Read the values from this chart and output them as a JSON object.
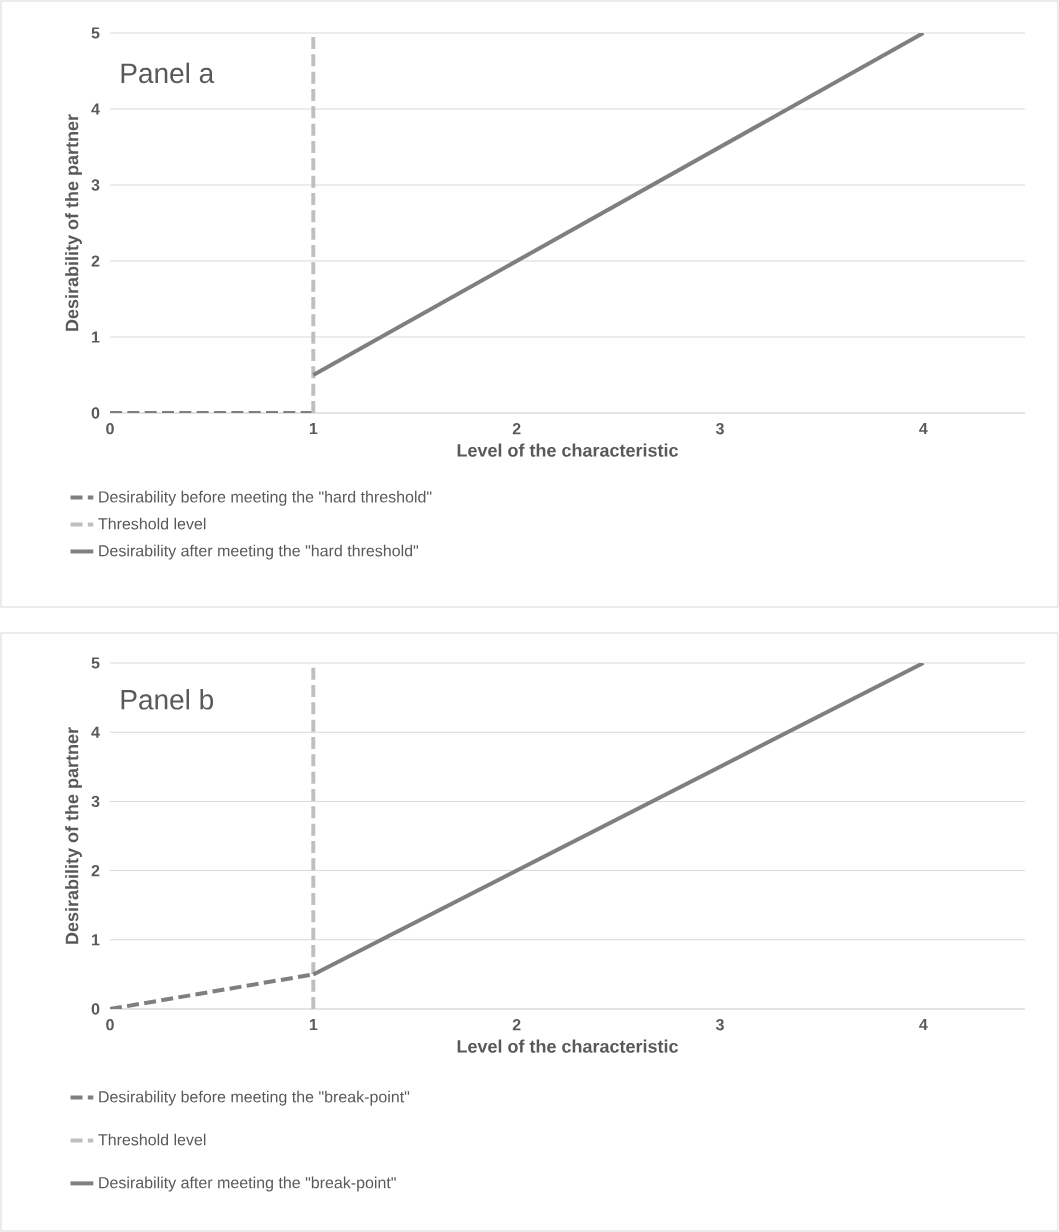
{
  "chart_data": [
    {
      "type": "line",
      "xlabel": "Level of the characteristic",
      "ylabel": "Desirability of the partner",
      "annotations": [
        "Panel a"
      ],
      "xlim": [
        0,
        4.5
      ],
      "ylim": [
        0,
        5
      ],
      "xticks": [
        0,
        1,
        2,
        3,
        4
      ],
      "yticks": [
        0,
        1,
        2,
        3,
        4,
        5
      ],
      "grid": "y",
      "legend": "bottom",
      "series": [
        {
          "name": "Desirability before meeting the \"hard threshold\"",
          "color": "#7f7f7f",
          "line_style": "dashed",
          "x": [
            0,
            1
          ],
          "values": [
            0,
            0
          ]
        },
        {
          "name": "Threshold level",
          "color": "#bfbfbf",
          "line_style": "dashed",
          "x": [
            1,
            1
          ],
          "values": [
            0,
            5
          ]
        },
        {
          "name": "Desirability after meeting the \"hard threshold\"",
          "color": "#7f7f7f",
          "line_style": "solid",
          "x": [
            1,
            4
          ],
          "values": [
            0.5,
            5
          ]
        }
      ]
    },
    {
      "type": "line",
      "xlabel": "Level of the characteristic",
      "ylabel": "Desirability of the partner",
      "annotations": [
        "Panel b"
      ],
      "xlim": [
        0,
        4.5
      ],
      "ylim": [
        0,
        5
      ],
      "xticks": [
        0,
        1,
        2,
        3,
        4
      ],
      "yticks": [
        0,
        1,
        2,
        3,
        4,
        5
      ],
      "grid": "y",
      "legend": "bottom",
      "series": [
        {
          "name": "Desirability before meeting the \"break-point\"",
          "color": "#7f7f7f",
          "line_style": "dashed",
          "x": [
            0,
            1
          ],
          "values": [
            0,
            0.5
          ]
        },
        {
          "name": "Threshold level",
          "color": "#bfbfbf",
          "line_style": "dashed",
          "x": [
            1,
            1
          ],
          "values": [
            0,
            5
          ]
        },
        {
          "name": "Desirability after meeting the \"break-point\"",
          "color": "#7f7f7f",
          "line_style": "solid",
          "x": [
            1,
            4
          ],
          "values": [
            0.5,
            5
          ]
        }
      ]
    }
  ]
}
